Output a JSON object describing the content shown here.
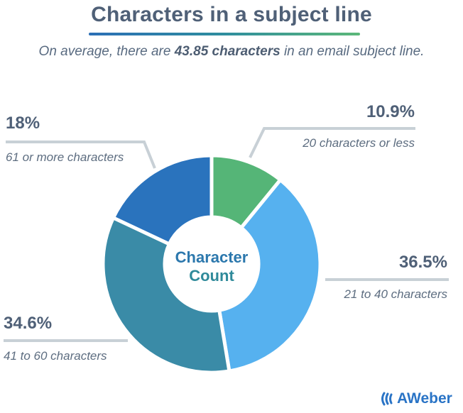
{
  "header": {
    "title": "Characters in a subject line",
    "subtitle_pre": "On average, there are ",
    "subtitle_bold": "43.85 characters",
    "subtitle_post": " in an email subject line."
  },
  "center_label": {
    "line1": "Character",
    "line2": "Count"
  },
  "labels": [
    {
      "pct": "10.9%",
      "desc": "20 characters or less"
    },
    {
      "pct": "36.5%",
      "desc": "21 to 40 characters"
    },
    {
      "pct": "34.6%",
      "desc": "41 to 60 characters"
    },
    {
      "pct": "18%",
      "desc": "61 or more characters"
    }
  ],
  "logo": {
    "text": "AWeber"
  },
  "colors": {
    "green": "#55b577",
    "light_blue": "#56b1ef",
    "teal": "#3a8ba7",
    "dark_blue": "#2a73bd",
    "leader": "#c8d0d6",
    "title": "#4f6077"
  },
  "chart_data": {
    "type": "pie",
    "variant": "donut",
    "title": "Characters in a subject line",
    "subtitle": "On average, there are 43.85 characters in an email subject line.",
    "center_text": "Character Count",
    "categories": [
      "20 characters or less",
      "21 to 40 characters",
      "41 to 60 characters",
      "61 or more characters"
    ],
    "values": [
      10.9,
      36.5,
      34.6,
      18
    ],
    "unit": "%",
    "colors": [
      "#55b577",
      "#56b1ef",
      "#3a8ba7",
      "#2a73bd"
    ],
    "start_angle": "12 o'clock",
    "direction": "clockwise",
    "legend": "none (direct labels with leader lines)"
  }
}
